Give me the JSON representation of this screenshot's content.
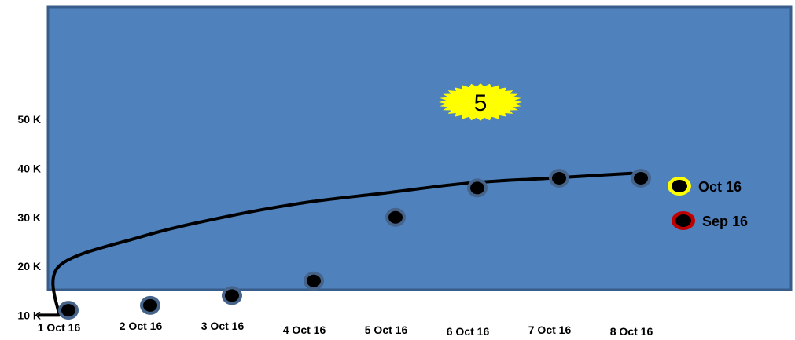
{
  "chart_data": {
    "type": "scatter",
    "title": "",
    "xlabel": "",
    "ylabel": "",
    "categories": [
      "1 Oct 16",
      "2 Oct  16",
      "3 Oct 16",
      "4 Oct 16",
      "5 Oct 16",
      "6 Oct 16",
      "7 Oct 16",
      "8 Oct 16"
    ],
    "y_ticks": [
      {
        "label": "10 K",
        "value": 10000
      },
      {
        "label": "20 K",
        "value": 20000
      },
      {
        "label": "30 K",
        "value": 30000
      },
      {
        "label": "40 K",
        "value": 40000
      },
      {
        "label": "50 K",
        "value": 50000
      }
    ],
    "ylim": [
      7000,
      73000
    ],
    "grid": false,
    "background_color": "#4f81bd",
    "series": [
      {
        "name": "Sep 16",
        "marker_ring_color": "#c00000",
        "points": [
          {
            "x": "1 Oct 16",
            "y": 11000
          },
          {
            "x": "2 Oct  16",
            "y": 12000
          },
          {
            "x": "3 Oct 16",
            "y": 14000
          },
          {
            "x": "4 Oct 16",
            "y": 17000
          },
          {
            "x": "5 Oct 16",
            "y": 30000
          },
          {
            "x": "6 Oct 16",
            "y": 36000
          },
          {
            "x": "7 Oct 16",
            "y": 38000
          },
          {
            "x": "8 Oct 16",
            "y": 38000
          }
        ]
      },
      {
        "name": "Oct 16",
        "marker_ring_color": "#ffff00",
        "points": [
          {
            "x": "1 Oct 16",
            "y": 10000
          },
          {
            "x": "1 Oct 16",
            "y": 20000
          },
          {
            "x": "2 Oct  16",
            "y": 26000
          },
          {
            "x": "3 Oct 16",
            "y": 30000
          },
          {
            "x": "4 Oct 16",
            "y": 33000
          },
          {
            "x": "5 Oct 16",
            "y": 35000
          },
          {
            "x": "6 Oct 16",
            "y": 37000
          },
          {
            "x": "7 Oct 16",
            "y": 38000
          },
          {
            "x": "8 Oct 16",
            "y": 39000
          }
        ]
      }
    ],
    "legend": {
      "placement": "right",
      "entries": [
        {
          "label": "Oct 16",
          "ring_color": "#ffff00"
        },
        {
          "label": "Sep 16",
          "ring_color": "#c00000"
        }
      ]
    },
    "annotations": [
      {
        "text": "5",
        "shape": "starburst",
        "fill": "#ffff00"
      }
    ]
  }
}
